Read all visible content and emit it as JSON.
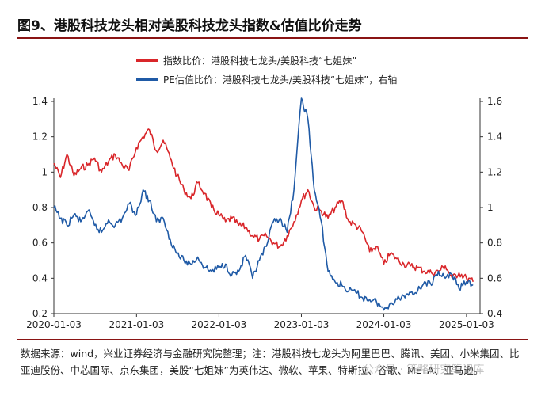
{
  "title": "图9、港股科技龙头相对美股科技龙头指数&估值比价走势",
  "note": "数据来源：wind，兴业证券经济与金融研究院整理；注：港股科技七龙头为阿里巴巴、腾讯、美团、小米集团、比亚迪股份、中芯国际、京东集团，美股“七姐妹”为英伟达、微软、苹果、特斯拉、谷歌、META、亚马逊。",
  "watermark": "公众号 · 策略研究笔记库",
  "chart_data": {
    "type": "line",
    "xlabel": "",
    "x_ticks": [
      "2020-01-03",
      "2021-01-03",
      "2022-01-03",
      "2023-01-03",
      "2024-01-03",
      "2025-01-03"
    ],
    "left_axis": {
      "ylim": [
        0.2,
        1.4
      ],
      "ticks": [
        "0.2",
        "0.4",
        "0.6",
        "0.8",
        "1",
        "1.2",
        "1.4"
      ]
    },
    "right_axis": {
      "ylim": [
        0.4,
        1.6
      ],
      "ticks": [
        "0.4",
        "0.6",
        "0.8",
        "1",
        "1.2",
        "1.4",
        "1.6"
      ]
    },
    "grid": false,
    "legend_position": "top",
    "series": [
      {
        "name": "指数比价：港股科技七龙头/美股科技“七姐妹”",
        "color": "#d9262a",
        "axis": "left",
        "x": [
          "2020-01-03",
          "2020-02-01",
          "2020-03-01",
          "2020-04-01",
          "2020-05-01",
          "2020-06-01",
          "2020-07-01",
          "2020-08-01",
          "2020-09-01",
          "2020-10-01",
          "2020-11-01",
          "2020-12-01",
          "2021-01-03",
          "2021-02-01",
          "2021-03-01",
          "2021-04-01",
          "2021-05-01",
          "2021-06-01",
          "2021-07-01",
          "2021-08-01",
          "2021-09-01",
          "2021-10-01",
          "2021-11-01",
          "2021-12-01",
          "2022-01-03",
          "2022-02-01",
          "2022-03-01",
          "2022-04-01",
          "2022-05-01",
          "2022-06-01",
          "2022-07-01",
          "2022-08-01",
          "2022-09-01",
          "2022-10-01",
          "2022-11-01",
          "2022-12-01",
          "2023-01-03",
          "2023-02-01",
          "2023-03-01",
          "2023-04-01",
          "2023-05-01",
          "2023-06-01",
          "2023-07-01",
          "2023-08-01",
          "2023-09-01",
          "2023-10-01",
          "2023-11-01",
          "2023-12-01",
          "2024-01-03",
          "2024-02-01",
          "2024-03-01",
          "2024-04-01",
          "2024-05-01",
          "2024-06-01",
          "2024-07-01",
          "2024-08-01",
          "2024-09-01",
          "2024-10-01",
          "2024-11-01",
          "2024-12-01",
          "2025-01-03",
          "2025-02-01"
        ],
        "y": [
          1.05,
          0.97,
          1.1,
          0.98,
          1.02,
          1.04,
          1.08,
          1.0,
          1.06,
          1.1,
          1.04,
          1.01,
          1.14,
          1.2,
          1.24,
          1.12,
          1.18,
          1.08,
          0.98,
          0.9,
          0.85,
          0.94,
          0.88,
          0.8,
          0.76,
          0.72,
          0.74,
          0.7,
          0.69,
          0.64,
          0.62,
          0.64,
          0.6,
          0.58,
          0.64,
          0.72,
          0.84,
          0.9,
          0.8,
          0.78,
          0.74,
          0.8,
          0.84,
          0.72,
          0.7,
          0.66,
          0.55,
          0.58,
          0.48,
          0.54,
          0.51,
          0.48,
          0.47,
          0.46,
          0.44,
          0.43,
          0.44,
          0.47,
          0.4,
          0.43,
          0.4,
          0.38
        ]
      },
      {
        "name": "PE估值比价：港股科技七龙头/美股科技“七姐妹”，右轴",
        "color": "#1f5aa6",
        "axis": "right",
        "x": [
          "2020-01-03",
          "2020-02-01",
          "2020-03-01",
          "2020-04-01",
          "2020-05-01",
          "2020-06-01",
          "2020-07-01",
          "2020-08-01",
          "2020-09-01",
          "2020-10-01",
          "2020-11-01",
          "2020-12-01",
          "2021-01-03",
          "2021-02-01",
          "2021-03-01",
          "2021-04-01",
          "2021-05-01",
          "2021-06-01",
          "2021-07-01",
          "2021-08-01",
          "2021-09-01",
          "2021-10-01",
          "2021-11-01",
          "2021-12-01",
          "2022-01-03",
          "2022-02-01",
          "2022-03-01",
          "2022-04-01",
          "2022-05-01",
          "2022-06-01",
          "2022-07-01",
          "2022-08-01",
          "2022-09-01",
          "2022-10-01",
          "2022-11-01",
          "2022-12-01",
          "2023-01-03",
          "2023-02-01",
          "2023-03-01",
          "2023-04-01",
          "2023-05-01",
          "2023-06-01",
          "2023-07-01",
          "2023-08-01",
          "2023-09-01",
          "2023-10-01",
          "2023-11-01",
          "2023-12-01",
          "2024-01-03",
          "2024-02-01",
          "2024-03-01",
          "2024-04-01",
          "2024-05-01",
          "2024-06-01",
          "2024-07-01",
          "2024-08-01",
          "2024-09-01",
          "2024-10-01",
          "2024-11-01",
          "2024-12-01",
          "2025-01-03",
          "2025-02-01"
        ],
        "y": [
          1.0,
          0.94,
          0.9,
          0.96,
          0.92,
          0.98,
          0.9,
          0.86,
          0.93,
          0.9,
          0.94,
          1.02,
          0.96,
          1.1,
          1.04,
          0.92,
          0.94,
          0.82,
          0.74,
          0.7,
          0.68,
          0.72,
          0.66,
          0.64,
          0.66,
          0.68,
          0.62,
          0.64,
          0.73,
          0.6,
          0.7,
          0.78,
          0.92,
          0.94,
          0.86,
          1.1,
          1.62,
          1.5,
          1.1,
          0.92,
          0.64,
          0.58,
          0.56,
          0.53,
          0.52,
          0.49,
          0.48,
          0.47,
          0.42,
          0.46,
          0.48,
          0.5,
          0.52,
          0.53,
          0.58,
          0.56,
          0.64,
          0.6,
          0.62,
          0.54,
          0.58,
          0.56
        ]
      }
    ]
  }
}
